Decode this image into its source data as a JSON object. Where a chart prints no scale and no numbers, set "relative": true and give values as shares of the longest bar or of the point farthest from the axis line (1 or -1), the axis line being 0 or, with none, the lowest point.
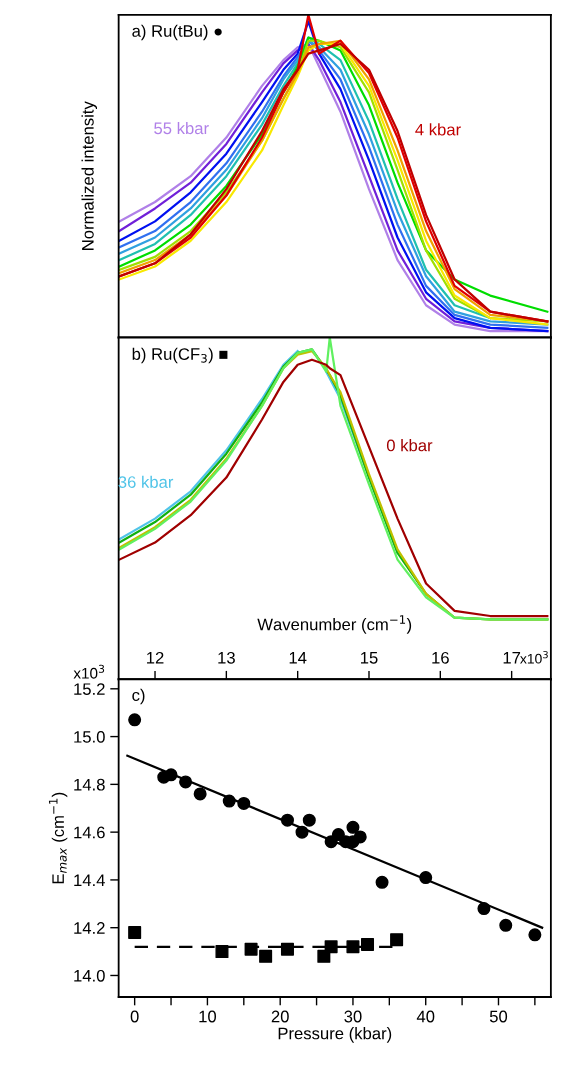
{
  "chart_data": [
    {
      "type": "line",
      "title": "a) Ru(tBu) ●",
      "ylabel": "Normalized intensity",
      "relative": true,
      "tick_labels": false,
      "xlim": [
        11.49,
        17.55
      ],
      "line_style": "solid",
      "marker": "none",
      "xticks": [
        12,
        13,
        14,
        15,
        16,
        17
      ],
      "x": [
        11.5,
        12.0,
        12.5,
        13.0,
        13.5,
        13.8,
        14.0,
        14.15,
        14.3,
        14.6,
        15.0,
        15.4,
        15.8,
        16.2,
        16.7,
        17.5
      ],
      "series": [
        {
          "name": "55 kbar",
          "color": "#b080e8",
          "values": [
            0.36,
            0.42,
            0.5,
            0.62,
            0.78,
            0.86,
            0.9,
            0.91,
            0.84,
            0.7,
            0.46,
            0.24,
            0.1,
            0.04,
            0.02,
            0.02
          ]
        },
        {
          "color": "#7020d8",
          "values": [
            0.33,
            0.4,
            0.48,
            0.6,
            0.76,
            0.85,
            0.89,
            0.91,
            0.86,
            0.73,
            0.5,
            0.27,
            0.12,
            0.05,
            0.03,
            0.02
          ]
        },
        {
          "color": "#0010f0",
          "values": [
            0.3,
            0.36,
            0.45,
            0.57,
            0.73,
            0.83,
            0.88,
            0.98,
            0.88,
            0.77,
            0.55,
            0.31,
            0.14,
            0.06,
            0.03,
            0.02
          ]
        },
        {
          "color": "#3070f0",
          "values": [
            0.28,
            0.33,
            0.42,
            0.54,
            0.7,
            0.81,
            0.87,
            0.92,
            0.89,
            0.8,
            0.59,
            0.35,
            0.16,
            0.07,
            0.04,
            0.03
          ]
        },
        {
          "color": "#30a0e0",
          "values": [
            0.26,
            0.31,
            0.4,
            0.52,
            0.68,
            0.8,
            0.86,
            0.92,
            0.9,
            0.83,
            0.63,
            0.39,
            0.19,
            0.08,
            0.05,
            0.04
          ]
        },
        {
          "color": "#20c0b0",
          "values": [
            0.24,
            0.29,
            0.38,
            0.5,
            0.66,
            0.78,
            0.85,
            0.93,
            0.91,
            0.86,
            0.67,
            0.43,
            0.21,
            0.1,
            0.06,
            null
          ]
        },
        {
          "color": "#00dd00",
          "values": [
            0.22,
            0.27,
            0.35,
            0.47,
            0.63,
            0.76,
            0.84,
            0.93,
            0.92,
            0.89,
            0.72,
            0.48,
            0.27,
            0.18,
            0.13,
            0.08
          ]
        },
        {
          "color": "#a0e000",
          "values": [
            0.21,
            0.25,
            0.33,
            0.45,
            0.61,
            0.74,
            0.82,
            0.92,
            0.92,
            0.9,
            0.76,
            0.52,
            0.27,
            0.12,
            0.06,
            0.05
          ]
        },
        {
          "color": "#f8e800",
          "values": [
            0.18,
            0.22,
            0.3,
            0.42,
            0.58,
            0.72,
            0.81,
            0.89,
            0.91,
            0.91,
            0.78,
            0.55,
            0.3,
            0.13,
            0.06,
            0.04
          ]
        },
        {
          "color": "#f0a000",
          "values": [
            0.2,
            0.24,
            0.32,
            0.44,
            0.61,
            0.74,
            0.82,
            0.9,
            0.91,
            0.92,
            0.8,
            0.58,
            0.33,
            0.15,
            0.07,
            0.05
          ]
        },
        {
          "color": "#e00000",
          "values": [
            0.19,
            0.23,
            0.31,
            0.44,
            0.62,
            0.76,
            0.83,
            1.0,
            0.88,
            0.92,
            0.82,
            0.62,
            0.36,
            0.16,
            0.08,
            0.05
          ]
        },
        {
          "name": "4 kbar",
          "color": "#c00000",
          "values": [
            0.19,
            0.23,
            0.32,
            0.46,
            0.64,
            0.77,
            0.83,
            0.88,
            0.89,
            0.91,
            0.83,
            0.64,
            0.38,
            0.18,
            0.08,
            0.05
          ]
        }
      ]
    },
    {
      "type": "line",
      "title": "b) Ru(CF$_{3}$) ■",
      "xlabel": "Wavenumber (cm$^{−1}$)",
      "relative": true,
      "tick_labels": "x",
      "xlim": [
        11.49,
        17.55
      ],
      "line_style": "solid",
      "marker": "none",
      "xticks": [
        12,
        13,
        14,
        15,
        16,
        17
      ],
      "annotations": [
        "x10$^{3}$"
      ],
      "x": [
        11.5,
        12.0,
        12.5,
        13.0,
        13.5,
        13.8,
        14.0,
        14.2,
        14.4,
        14.45,
        14.6,
        15.0,
        15.4,
        15.8,
        16.2,
        16.7,
        17.5
      ],
      "series": [
        {
          "name": "36 kbar",
          "color": "#50c4e8",
          "values": [
            0.41,
            0.47,
            0.55,
            0.67,
            0.82,
            0.92,
            0.96,
            null,
            0.9,
            0.88,
            0.82,
            0.59,
            0.37,
            null,
            null,
            null,
            null
          ]
        },
        {
          "color": "#10b010",
          "values": [
            0.4,
            0.46,
            0.54,
            0.66,
            0.81,
            0.915,
            0.955,
            0.965,
            0.906,
            0.89,
            0.83,
            0.59,
            0.37,
            0.25,
            0.18,
            0.175,
            0.175
          ]
        },
        {
          "color": "#c0c000",
          "values": [
            0.385,
            0.445,
            0.525,
            0.645,
            0.8,
            0.91,
            0.95,
            0.96,
            0.91,
            0.89,
            0.84,
            0.6,
            0.38,
            0.25,
            0.18,
            0.175,
            0.175
          ]
        },
        {
          "color": "#60f060",
          "values": [
            0.38,
            0.44,
            0.52,
            0.64,
            0.8,
            0.91,
            0.955,
            0.965,
            0.9,
            1.0,
            0.8,
            0.57,
            0.35,
            0.24,
            0.18,
            0.175,
            0.175
          ]
        },
        {
          "name": "0 kbar",
          "color": "#a00000",
          "values": [
            0.35,
            0.4,
            0.48,
            0.59,
            0.76,
            0.87,
            0.92,
            0.935,
            0.92,
            0.91,
            0.89,
            0.68,
            0.47,
            0.28,
            0.2,
            0.185,
            0.185
          ]
        }
      ]
    },
    {
      "type": "scatter",
      "title": "c)",
      "xlabel": "Pressure (kbar)",
      "ylabel": "E$_{max}$ (cm$^{−1}$)",
      "xlim": [
        -2.2,
        57.2
      ],
      "ylim": [
        13.91,
        15.24
      ],
      "xticks": [
        0,
        {
          "value": 5,
          "label": null
        },
        10,
        {
          "value": 15,
          "label": null
        },
        20,
        {
          "value": 25,
          "label": null
        },
        30,
        {
          "value": 35,
          "label": null
        },
        40,
        {
          "value": 45,
          "label": null
        },
        50,
        {
          "value": 55,
          "label": null
        }
      ],
      "yticks": [
        {
          "value": 14.0,
          "label": "14.0"
        },
        14.2,
        14.4,
        14.6,
        14.8,
        {
          "value": 15.0,
          "label": "15.0"
        },
        15.2
      ],
      "annotations": [
        "x10$^{3}$"
      ],
      "series": [
        {
          "type": "scatter",
          "marker": "circle",
          "color": "#000000",
          "x": [
            0,
            4,
            5,
            7,
            9,
            13,
            15,
            21,
            23,
            24,
            27,
            28,
            29,
            30,
            30,
            31,
            34,
            40,
            48,
            51,
            55
          ],
          "values": [
            15.07,
            14.83,
            14.84,
            14.81,
            14.76,
            14.73,
            14.72,
            14.65,
            14.6,
            14.65,
            14.56,
            14.59,
            14.56,
            14.62,
            14.56,
            14.58,
            14.39,
            14.41,
            14.28,
            14.21,
            14.17
          ]
        },
        {
          "type": "line",
          "line_style": "solid",
          "color": "#000000",
          "x": [
            -1,
            56
          ],
          "values": [
            14.92,
            14.2
          ]
        },
        {
          "type": "scatter",
          "marker": "square",
          "color": "#000000",
          "x": [
            0,
            12,
            16,
            18,
            21,
            26,
            27,
            30,
            32,
            36
          ],
          "values": [
            14.18,
            14.1,
            14.11,
            14.08,
            14.11,
            14.08,
            14.12,
            14.12,
            14.13,
            14.15
          ]
        },
        {
          "type": "line",
          "line_style": "dashed",
          "color": "#000000",
          "x": [
            0,
            36
          ],
          "values": [
            14.12,
            14.12
          ]
        }
      ]
    }
  ]
}
